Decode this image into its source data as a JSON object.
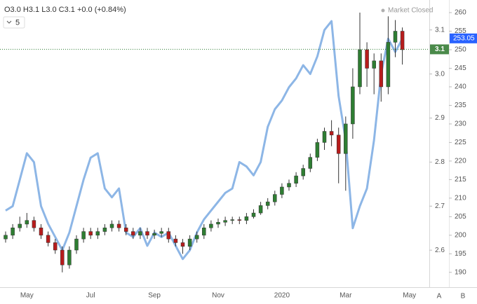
{
  "chart_data": {
    "type": "candlestick",
    "header": "O3.0 H3.1 L3.0 C3.1 +0.0 (+0.84%)",
    "interval": "5",
    "status": "Market Closed",
    "categories": [
      null,
      null,
      null,
      "May",
      null,
      null,
      null,
      null,
      null,
      null,
      null,
      null,
      "Jul",
      null,
      null,
      null,
      null,
      null,
      null,
      null,
      null,
      "Sep",
      null,
      null,
      null,
      null,
      null,
      null,
      null,
      null,
      "Nov",
      null,
      null,
      null,
      null,
      null,
      null,
      null,
      null,
      "2020",
      null,
      null,
      null,
      null,
      null,
      null,
      null,
      null,
      "Mar",
      null,
      null,
      null,
      null,
      null,
      null,
      null,
      null,
      "May"
    ],
    "candles": {
      "up_color": "#2e7d32",
      "down_color": "#b71c1c",
      "open": [
        199,
        200,
        202,
        203,
        204,
        202,
        200,
        198,
        196,
        192,
        196,
        199,
        201,
        200,
        201,
        202,
        203,
        202,
        201,
        200,
        201,
        200,
        200.5,
        201,
        199,
        198,
        197,
        199,
        200,
        202,
        203,
        203.5,
        204,
        204.2,
        204,
        205,
        206,
        208,
        209,
        211,
        213,
        214,
        216,
        218,
        221,
        225,
        228,
        227,
        222,
        230,
        240,
        250,
        245,
        247,
        240,
        252,
        255,
        null
      ],
      "high": [
        201,
        203,
        205,
        206,
        205,
        203,
        201,
        199,
        197,
        197,
        200,
        202,
        202,
        202,
        203,
        204,
        204,
        203,
        202,
        202,
        202,
        201.5,
        202,
        202,
        200,
        199,
        200,
        201,
        203,
        204,
        204.5,
        205,
        205,
        205,
        206,
        207,
        209,
        210,
        212,
        214,
        215,
        217,
        219,
        222,
        226,
        229,
        231,
        229,
        232,
        245,
        260,
        252,
        249,
        249,
        259,
        258,
        256,
        null
      ],
      "low": [
        198,
        199,
        201,
        202,
        201,
        199,
        197,
        195,
        190,
        191,
        195,
        198,
        199,
        199,
        200,
        201,
        201,
        200,
        199,
        199,
        199,
        199,
        199.5,
        198,
        197,
        195,
        196,
        198,
        199,
        201,
        202,
        202.5,
        203,
        203,
        203,
        204.5,
        205.5,
        207,
        208,
        210,
        212,
        213,
        215,
        217,
        220,
        223,
        224,
        214,
        212,
        226,
        238,
        240,
        238,
        236,
        238,
        248,
        246,
        null
      ],
      "close": [
        200,
        202,
        203,
        204,
        202,
        200,
        198,
        196,
        192,
        196,
        199,
        201,
        200,
        201,
        202,
        203,
        202,
        201,
        200,
        201,
        200,
        200.5,
        201,
        199,
        198,
        197,
        199,
        200,
        202,
        203,
        203.5,
        204,
        204.2,
        204,
        205,
        206,
        208,
        209,
        211,
        213,
        214,
        216,
        218,
        221,
        225,
        228,
        227,
        222,
        230,
        240,
        250,
        245,
        247,
        240,
        252,
        255,
        250,
        null
      ]
    },
    "overlay": {
      "color": "#8db6e6",
      "axis": "y2",
      "values": [
        2.69,
        2.7,
        2.76,
        2.82,
        2.8,
        2.7,
        2.66,
        2.63,
        2.6,
        2.64,
        2.7,
        2.76,
        2.81,
        2.82,
        2.74,
        2.72,
        2.74,
        2.64,
        2.63,
        2.65,
        2.61,
        2.64,
        2.63,
        2.64,
        2.61,
        2.58,
        2.6,
        2.64,
        2.67,
        2.69,
        2.71,
        2.73,
        2.74,
        2.8,
        2.79,
        2.77,
        2.8,
        2.88,
        2.92,
        2.94,
        2.97,
        2.99,
        3.02,
        3.0,
        3.04,
        3.1,
        3.12,
        2.95,
        2.85,
        2.65,
        2.7,
        2.74,
        2.85,
        3.0,
        3.08,
        3.05,
        3.08,
        null
      ]
    },
    "ylim": [
      186,
      263.4
    ],
    "yticks": [
      190,
      195,
      200,
      205,
      210,
      215,
      220,
      225,
      230,
      235,
      240,
      245,
      250,
      255,
      260
    ],
    "y2lim": [
      2.516,
      3.168
    ],
    "y2ticks": [
      2.6,
      2.7,
      2.8,
      2.9,
      {
        "value": 3,
        "label": "3.0"
      },
      3.1
    ],
    "last_price": 253.05,
    "last_overlay": {
      "value": 3.056,
      "label": "3.1"
    },
    "corner_buttons": [
      "A",
      "B"
    ]
  }
}
